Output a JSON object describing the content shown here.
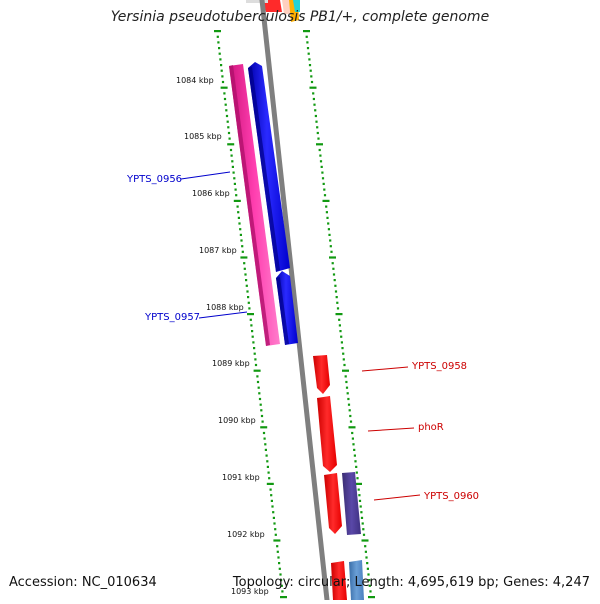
{
  "title": "Yersinia pseudotuberculosis PB1/+, complete genome",
  "accession": "Accession: NC_010634",
  "summary": "Topology: circular; Length: 4,695,619 bp; Genes: 4,247",
  "ticks": [
    "1084 kbp",
    "1085 kbp",
    "1086 kbp",
    "1087 kbp",
    "1088 kbp",
    "1089 kbp",
    "1090 kbp",
    "1091 kbp",
    "1092 kbp",
    "1093 kbp"
  ],
  "genes": [
    {
      "label": "YPTS_0956",
      "strand": "forward",
      "color": "#0000cc"
    },
    {
      "label": "YPTS_0957",
      "strand": "forward",
      "color": "#0000cc"
    },
    {
      "label": "YPTS_0958",
      "strand": "reverse",
      "color": "#cc0000"
    },
    {
      "label": "phoR",
      "strand": "reverse",
      "color": "#cc0000"
    },
    {
      "label": "YPTS_0960",
      "strand": "reverse",
      "color": "#cc0000"
    }
  ],
  "colors": {
    "forward_gene": "#0000ee",
    "reverse_gene": "#ff0000",
    "pink_feature": "#ff1ea0",
    "purple_feature": "#4b3b8c",
    "steelblue_feature": "#4a7fbf",
    "backbone": "#7f7f7f",
    "tick": "#119911"
  }
}
